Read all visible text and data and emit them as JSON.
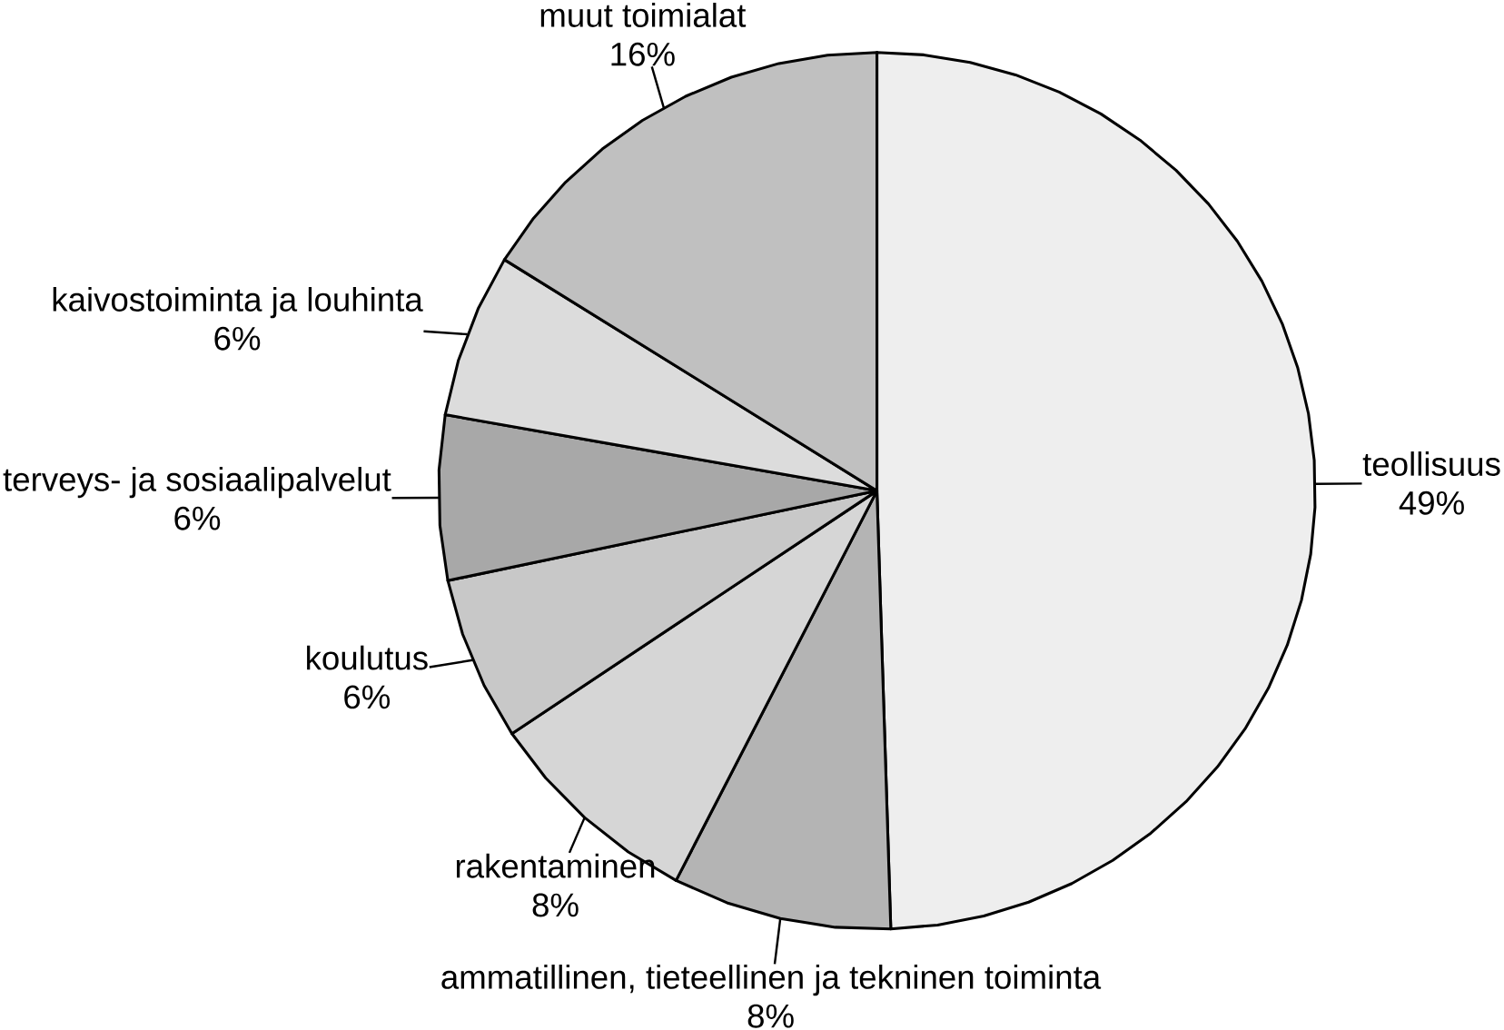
{
  "chart_data": {
    "type": "pie",
    "categories": [
      "teollisuus",
      "ammatillinen, tieteellinen ja tekninen toiminta",
      "rakentaminen",
      "koulutus",
      "terveys- ja sosiaalipalvelut",
      "kaivostoiminta ja louhinta",
      "muut toimialat"
    ],
    "values": [
      49,
      8,
      8,
      6,
      6,
      6,
      16
    ],
    "value_labels": [
      "49%",
      "8%",
      "8%",
      "6%",
      "6%",
      "6%",
      "16%"
    ],
    "colors": [
      "#eeeeee",
      "#b4b4b4",
      "#d6d6d6",
      "#c8c8c8",
      "#a8a8a8",
      "#dcdcdc",
      "#c0c0c0"
    ]
  }
}
